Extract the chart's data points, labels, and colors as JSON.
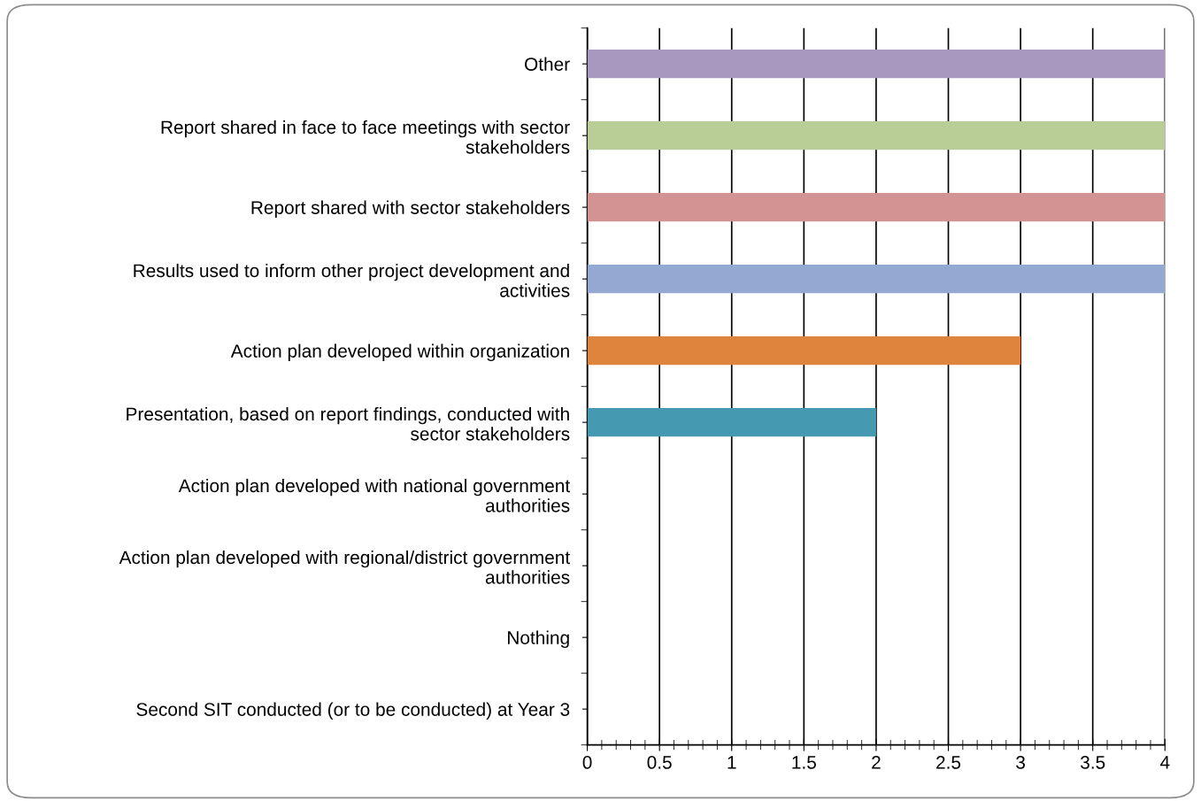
{
  "chart_data": {
    "type": "bar",
    "orientation": "horizontal",
    "categories": [
      "Other",
      "Report shared in face to face meetings with sector stakeholders",
      "Report shared with sector stakeholders",
      "Results used to inform other project development and activities",
      "Action plan developed within organization",
      "Presentation, based on report findings, conducted with sector stakeholders",
      "Action plan developed with national government authorities",
      "Action plan developed with regional/district government authorities",
      "Nothing",
      "Second SIT conducted (or to be conducted) at Year 3"
    ],
    "values": [
      4,
      4,
      4,
      4,
      3,
      2,
      0,
      0,
      0,
      0
    ],
    "colors": [
      "#a897bf",
      "#b9cd96",
      "#d39393",
      "#94a9d1",
      "#df843d",
      "#4599b0",
      "#4599b0",
      "#4599b0",
      "#4599b0",
      "#4599b0"
    ],
    "xlim": [
      0,
      4
    ],
    "xticks": [
      0,
      0.5,
      1,
      1.5,
      2,
      2.5,
      3,
      3.5,
      4
    ],
    "grid": "x",
    "legend": false
  }
}
